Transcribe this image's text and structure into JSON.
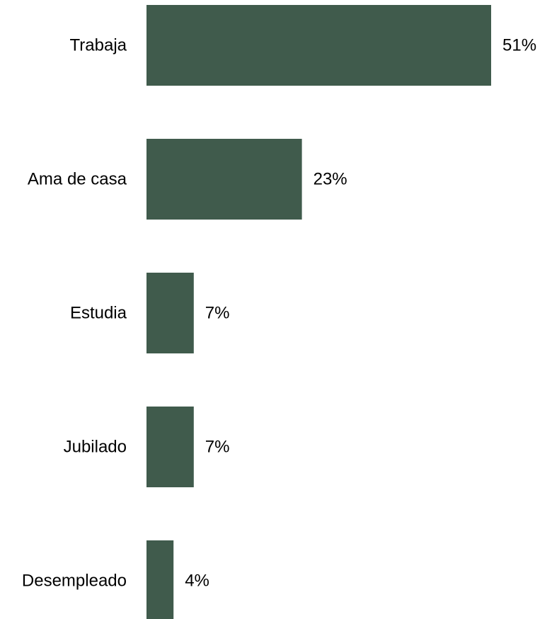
{
  "chart_data": {
    "type": "bar",
    "orientation": "horizontal",
    "categories": [
      "Trabaja",
      "Ama de casa",
      "Estudia",
      "Jubilado",
      "Desempleado"
    ],
    "values": [
      51,
      23,
      7,
      7,
      4
    ],
    "value_labels": [
      "51%",
      "23%",
      "7%",
      "7%",
      "4%"
    ],
    "unit": "%",
    "title": "",
    "xlabel": "",
    "ylabel": "",
    "xlim": [
      0,
      51
    ],
    "grid": false,
    "legend": "none",
    "bar_color": "#405b4c",
    "text_color": "#000000",
    "background": "#ffffff"
  }
}
